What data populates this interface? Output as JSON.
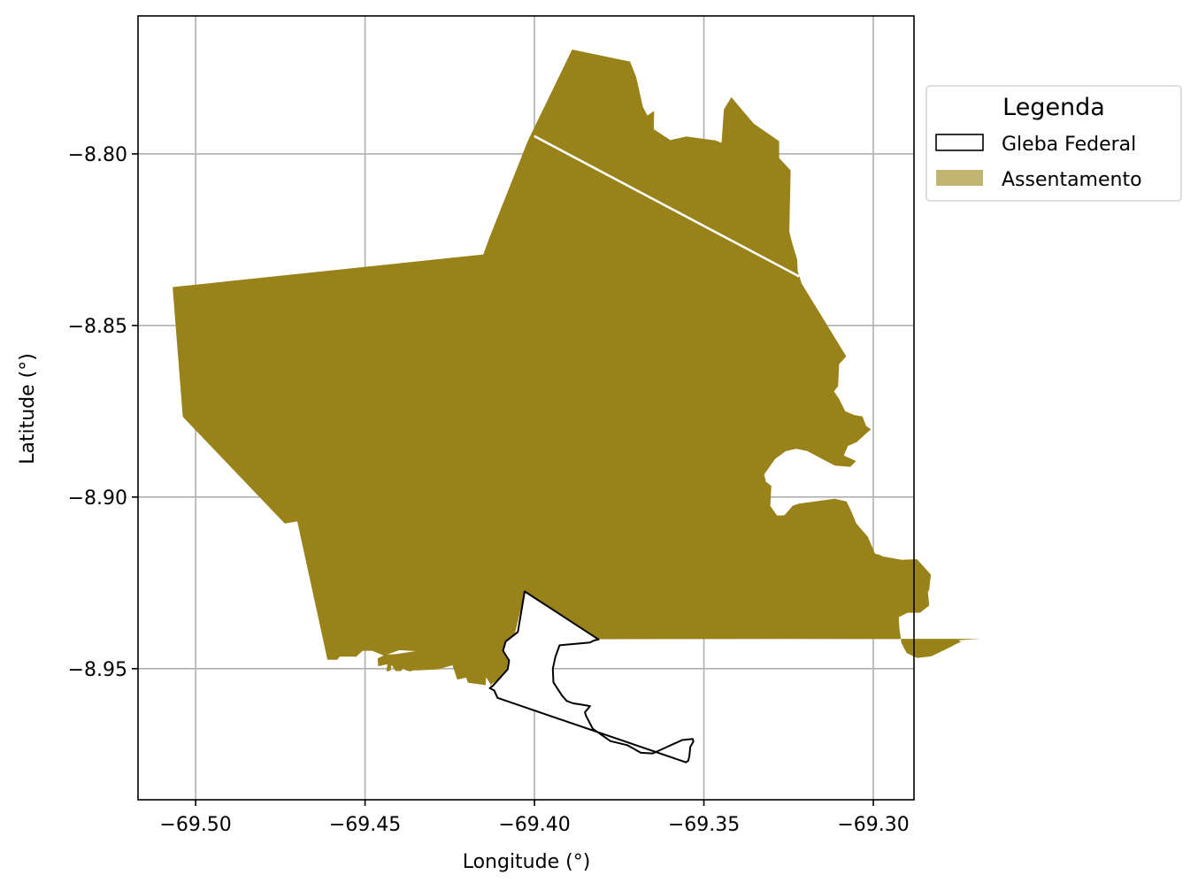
{
  "map": {
    "xlabel": "Longitude (°)",
    "ylabel": "Latitude (°)",
    "xticks": [
      {
        "value": -69.5,
        "label": "−69.50"
      },
      {
        "value": -69.45,
        "label": "−69.45"
      },
      {
        "value": -69.4,
        "label": "−69.40"
      },
      {
        "value": -69.35,
        "label": "−69.35"
      },
      {
        "value": -69.3,
        "label": "−69.30"
      }
    ],
    "yticks": [
      {
        "value": -8.8,
        "label": "−8.80"
      },
      {
        "value": -8.85,
        "label": "−8.85"
      },
      {
        "value": -8.9,
        "label": "−8.90"
      },
      {
        "value": -8.95,
        "label": "−8.95"
      }
    ],
    "xlim": [
      -69.517,
      -69.288
    ],
    "ylim": [
      -8.9882,
      -8.7598
    ],
    "grid": true,
    "colors": {
      "assentamento": "#998219",
      "assentamento_legend": "#c0b470",
      "gleba_fill": "#ffffff",
      "gleba_edge": "#000000",
      "internal_line": "#ffffff",
      "grid": "#b0b0b0"
    },
    "legend": {
      "title": "Legenda",
      "placement": "outside-top-right",
      "items": [
        {
          "label": "Gleba Federal",
          "style": "outline"
        },
        {
          "label": "Assentamento",
          "style": "filled"
        }
      ]
    },
    "layers": {
      "assentamento": [
        [
          -69.5068,
          -8.8388
        ],
        [
          -69.4151,
          -8.8293
        ],
        [
          -69.4132,
          -8.8242
        ],
        [
          -69.4019,
          -8.7961
        ],
        [
          -69.3889,
          -8.7696
        ],
        [
          -69.3718,
          -8.7731
        ],
        [
          -69.37,
          -8.7776
        ],
        [
          -69.368,
          -8.7863
        ],
        [
          -69.3667,
          -8.7888
        ],
        [
          -69.3647,
          -8.7875
        ],
        [
          -69.3648,
          -8.7928
        ],
        [
          -69.3599,
          -8.796
        ],
        [
          -69.3552,
          -8.7949
        ],
        [
          -69.3466,
          -8.7961
        ],
        [
          -69.3448,
          -8.7968
        ],
        [
          -69.3441,
          -8.787
        ],
        [
          -69.3419,
          -8.7835
        ],
        [
          -69.3353,
          -8.7912
        ],
        [
          -69.3278,
          -8.7963
        ],
        [
          -69.3278,
          -8.8012
        ],
        [
          -69.3244,
          -8.8048
        ],
        [
          -69.3248,
          -8.8227
        ],
        [
          -69.3239,
          -8.8261
        ],
        [
          -69.3225,
          -8.8307
        ],
        [
          -69.3223,
          -8.8341
        ],
        [
          -69.3212,
          -8.8377
        ],
        [
          -69.308,
          -8.859
        ],
        [
          -69.3101,
          -8.8613
        ],
        [
          -69.3104,
          -8.8677
        ],
        [
          -69.3116,
          -8.8692
        ],
        [
          -69.3101,
          -8.8714
        ],
        [
          -69.3083,
          -8.875
        ],
        [
          -69.3056,
          -8.8761
        ],
        [
          -69.3032,
          -8.8765
        ],
        [
          -69.3021,
          -8.8793
        ],
        [
          -69.3007,
          -8.8802
        ],
        [
          -69.3049,
          -8.884
        ],
        [
          -69.3075,
          -8.8851
        ],
        [
          -69.3087,
          -8.8879
        ],
        [
          -69.3051,
          -8.8895
        ],
        [
          -69.3068,
          -8.8912
        ],
        [
          -69.3114,
          -8.8908
        ],
        [
          -69.3195,
          -8.8866
        ],
        [
          -69.3227,
          -8.8859
        ],
        [
          -69.3258,
          -8.8866
        ],
        [
          -69.329,
          -8.8889
        ],
        [
          -69.3322,
          -8.8934
        ],
        [
          -69.3317,
          -8.8955
        ],
        [
          -69.3301,
          -8.8968
        ],
        [
          -69.3304,
          -8.9026
        ],
        [
          -69.3284,
          -8.9054
        ],
        [
          -69.3262,
          -8.9053
        ],
        [
          -69.325,
          -8.9039
        ],
        [
          -69.3238,
          -8.9025
        ],
        [
          -69.3219,
          -8.9019
        ],
        [
          -69.3114,
          -8.9005
        ],
        [
          -69.3079,
          -8.9013
        ],
        [
          -69.3064,
          -8.9044
        ],
        [
          -69.305,
          -8.9077
        ],
        [
          -69.3016,
          -8.9116
        ],
        [
          -69.2995,
          -8.9165
        ],
        [
          -69.2982,
          -8.9168
        ],
        [
          -69.2972,
          -8.9173
        ],
        [
          -69.2916,
          -8.9183
        ],
        [
          -69.2871,
          -8.9181
        ],
        [
          -69.2843,
          -8.9212
        ],
        [
          -69.283,
          -8.9226
        ],
        [
          -69.2835,
          -8.927
        ],
        [
          -69.2839,
          -8.9277
        ],
        [
          -69.2835,
          -8.9316
        ],
        [
          -69.2862,
          -8.9337
        ],
        [
          -69.2899,
          -8.9337
        ],
        [
          -69.2925,
          -8.935
        ],
        [
          -69.2923,
          -8.9383
        ],
        [
          -69.2917,
          -8.9425
        ],
        [
          -69.2902,
          -8.9454
        ],
        [
          -69.2871,
          -8.9469
        ],
        [
          -69.2829,
          -8.9464
        ],
        [
          -69.2791,
          -8.9446
        ],
        [
          -69.2741,
          -8.9421
        ],
        [
          -69.2749,
          -8.9417
        ],
        [
          -69.2684,
          -8.9413
        ],
        [
          -69.381,
          -8.9414
        ],
        [
          -69.4028,
          -8.9276
        ],
        [
          -69.4079,
          -8.9483
        ],
        [
          -69.4079,
          -8.9515
        ],
        [
          -69.4131,
          -8.9548
        ],
        [
          -69.4122,
          -8.9557
        ],
        [
          -69.4143,
          -8.9525
        ],
        [
          -69.4144,
          -8.9548
        ],
        [
          -69.4196,
          -8.9541
        ],
        [
          -69.4202,
          -8.9526
        ],
        [
          -69.4228,
          -8.9532
        ],
        [
          -69.4242,
          -8.949
        ],
        [
          -69.4285,
          -8.9502
        ],
        [
          -69.4345,
          -8.9505
        ],
        [
          -69.4357,
          -8.9505
        ],
        [
          -69.4367,
          -8.9508
        ],
        [
          -69.4379,
          -8.9505
        ],
        [
          -69.4388,
          -8.95
        ],
        [
          -69.4394,
          -8.9507
        ],
        [
          -69.441,
          -8.9507
        ],
        [
          -69.4422,
          -8.9489
        ],
        [
          -69.4425,
          -8.9506
        ],
        [
          -69.4437,
          -8.9508
        ],
        [
          -69.4434,
          -8.9487
        ],
        [
          -69.4461,
          -8.9493
        ],
        [
          -69.4463,
          -8.947
        ],
        [
          -69.444,
          -8.9459
        ],
        [
          -69.4411,
          -8.9458
        ],
        [
          -69.4351,
          -8.9449
        ],
        [
          -69.4399,
          -8.9446
        ],
        [
          -69.4444,
          -8.9462
        ],
        [
          -69.4479,
          -8.9448
        ],
        [
          -69.4507,
          -8.9448
        ],
        [
          -69.4526,
          -8.9465
        ],
        [
          -69.4575,
          -8.9465
        ],
        [
          -69.4582,
          -8.9474
        ],
        [
          -69.4611,
          -8.9474
        ],
        [
          -69.47,
          -8.9071
        ],
        [
          -69.4737,
          -8.9077
        ],
        [
          -69.5038,
          -8.8766
        ]
      ],
      "gleba_federal": [
        [
          -69.4029,
          -8.9275
        ],
        [
          -69.3811,
          -8.9415
        ],
        [
          -69.3825,
          -8.9418
        ],
        [
          -69.3836,
          -8.9424
        ],
        [
          -69.3926,
          -8.9432
        ],
        [
          -69.3938,
          -8.9465
        ],
        [
          -69.3946,
          -8.95
        ],
        [
          -69.3944,
          -8.954
        ],
        [
          -69.3919,
          -8.9578
        ],
        [
          -69.3905,
          -8.9594
        ],
        [
          -69.3886,
          -8.9601
        ],
        [
          -69.386,
          -8.9605
        ],
        [
          -69.3836,
          -8.9609
        ],
        [
          -69.3851,
          -8.9627
        ],
        [
          -69.3848,
          -8.9637
        ],
        [
          -69.3828,
          -8.9675
        ],
        [
          -69.3776,
          -8.9711
        ],
        [
          -69.3726,
          -8.9723
        ],
        [
          -69.3686,
          -8.9745
        ],
        [
          -69.3651,
          -8.9747
        ],
        [
          -69.3615,
          -8.9731
        ],
        [
          -69.3564,
          -8.9708
        ],
        [
          -69.3533,
          -8.9705
        ],
        [
          -69.3531,
          -8.9712
        ],
        [
          -69.354,
          -8.9728
        ],
        [
          -69.3543,
          -8.9755
        ],
        [
          -69.3546,
          -8.9768
        ],
        [
          -69.3553,
          -8.9773
        ],
        [
          -69.3564,
          -8.9769
        ],
        [
          -69.4109,
          -8.9585
        ],
        [
          -69.4119,
          -8.9563
        ],
        [
          -69.4132,
          -8.9557
        ],
        [
          -69.4122,
          -8.9549
        ],
        [
          -69.4079,
          -8.9502
        ],
        [
          -69.4075,
          -8.9476
        ],
        [
          -69.4093,
          -8.9448
        ],
        [
          -69.4085,
          -8.9421
        ],
        [
          -69.4049,
          -8.9393
        ]
      ],
      "internal_line": [
        [
          -69.4001,
          -8.7948
        ],
        [
          -69.3219,
          -8.8357
        ]
      ]
    }
  }
}
